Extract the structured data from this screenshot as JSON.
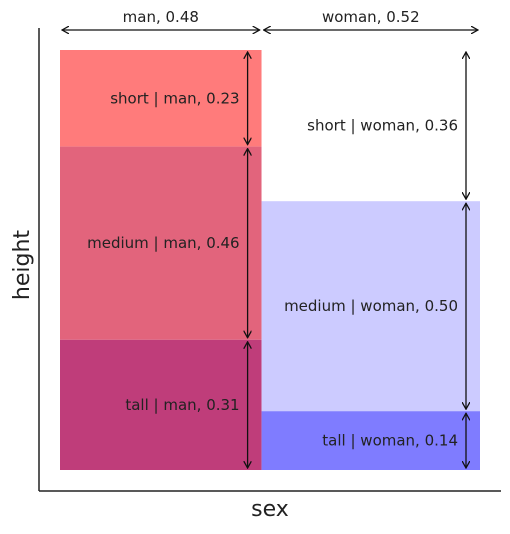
{
  "chart_data": {
    "type": "mosaic",
    "xlabel": "sex",
    "ylabel": "height",
    "columns": [
      {
        "name": "man",
        "proportion": 0.48,
        "header": "man, 0.48",
        "segments": [
          {
            "name": "short",
            "value": 0.23,
            "label": "short | man, 0.23",
            "color": "#ff7b7b"
          },
          {
            "name": "medium",
            "value": 0.46,
            "label": "medium | man, 0.46",
            "color": "#e2647c"
          },
          {
            "name": "tall",
            "value": 0.31,
            "label": "tall | man, 0.31",
            "color": "#bf3d7a"
          }
        ]
      },
      {
        "name": "woman",
        "proportion": 0.52,
        "header": "woman, 0.52",
        "segments": [
          {
            "name": "short",
            "value": 0.36,
            "label": "short | woman, 0.36",
            "color": "#ffffff"
          },
          {
            "name": "medium",
            "value": 0.5,
            "label": "medium | woman, 0.50",
            "color": "#cccbff"
          },
          {
            "name": "tall",
            "value": 0.14,
            "label": "tall | woman, 0.14",
            "color": "#7f7cff"
          }
        ]
      }
    ]
  }
}
